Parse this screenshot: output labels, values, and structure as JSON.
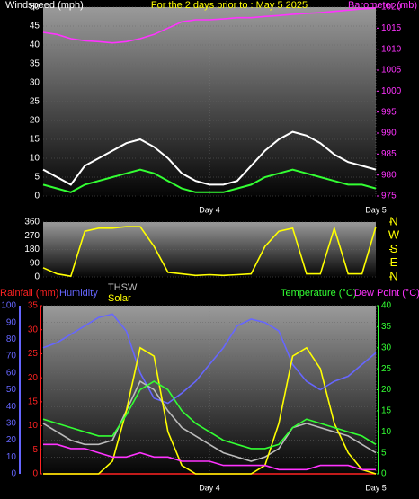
{
  "chart_data": [
    {
      "type": "line",
      "title": "For the 2 days prior to : May 5 2025",
      "ylabel": "Windspeed (mph)",
      "y2label": "Barometer (mb)",
      "ycolor": "#ffffff",
      "y2color": "#ff33ff",
      "titlecolor": "#ffff00",
      "x": [
        0,
        2,
        4,
        6,
        8,
        10,
        12,
        14,
        16,
        18,
        20,
        22,
        24,
        26,
        28,
        30,
        32,
        34,
        36,
        38,
        40,
        42,
        44,
        46,
        48
      ],
      "xlim": [
        0,
        48
      ],
      "xticks": [
        {
          "value": 24,
          "label": "Day 4"
        },
        {
          "value": 48,
          "label": "Day 5"
        }
      ],
      "ylim": [
        0,
        50
      ],
      "yticks": [
        0,
        5,
        10,
        15,
        20,
        25,
        30,
        35,
        40,
        45,
        50
      ],
      "y2lim": [
        975,
        1020
      ],
      "y2ticks": [
        975,
        980,
        985,
        990,
        995,
        1000,
        1005,
        1010,
        1015,
        1020
      ],
      "series": [
        {
          "color": "#ffffff",
          "values": [
            7,
            5,
            3,
            8,
            10,
            12,
            14,
            15,
            13,
            10,
            6,
            4,
            3,
            3,
            4,
            8,
            12,
            15,
            17,
            16,
            14,
            11,
            9,
            8,
            7
          ]
        },
        {
          "color": "#33ff33",
          "values": [
            3,
            2,
            1,
            3,
            4,
            5,
            6,
            7,
            6,
            4,
            2,
            1,
            1,
            1,
            2,
            3,
            5,
            6,
            7,
            6,
            5,
            4,
            3,
            3,
            2
          ]
        },
        {
          "color": "#ff33ff",
          "axis": "y2",
          "values": [
            1014,
            1013.5,
            1012.5,
            1012,
            1011.8,
            1011.5,
            1011.8,
            1012.5,
            1013.5,
            1015,
            1016.5,
            1017,
            1017,
            1017.2,
            1017.5,
            1017.5,
            1017.8,
            1018,
            1018.3,
            1018.5,
            1018.7,
            1019,
            1019.3,
            1019.6,
            1019.8
          ]
        }
      ]
    },
    {
      "type": "line",
      "ycolor": "#ffffff",
      "y2color": "#ffff00",
      "x": [
        0,
        2,
        4,
        6,
        8,
        10,
        12,
        14,
        16,
        18,
        20,
        22,
        24,
        26,
        28,
        30,
        32,
        34,
        36,
        38,
        40,
        42,
        44,
        46,
        48
      ],
      "xlim": [
        0,
        48
      ],
      "ylim": [
        0,
        360
      ],
      "yticks": [
        0,
        90,
        180,
        270,
        360
      ],
      "y2lim": [
        0,
        360
      ],
      "y2ticks": [
        {
          "value": 360,
          "label": "N"
        },
        {
          "value": 270,
          "label": "W"
        },
        {
          "value": 180,
          "label": "S"
        },
        {
          "value": 90,
          "label": "E"
        },
        {
          "value": 0,
          "label": "N"
        }
      ],
      "series": [
        {
          "color": "#ffff00",
          "values": [
            60,
            20,
            5,
            300,
            320,
            320,
            330,
            330,
            200,
            30,
            20,
            10,
            15,
            10,
            15,
            20,
            200,
            300,
            320,
            20,
            20,
            320,
            20,
            20,
            330
          ]
        }
      ]
    },
    {
      "type": "line",
      "ycolor": "#6666ff",
      "y2color": "#33ff33",
      "y3color": "#ff2222",
      "x": [
        0,
        2,
        4,
        6,
        8,
        10,
        12,
        14,
        16,
        18,
        20,
        22,
        24,
        26,
        28,
        30,
        32,
        34,
        36,
        38,
        40,
        42,
        44,
        46,
        48
      ],
      "xlim": [
        0,
        48
      ],
      "xticks": [
        {
          "value": 24,
          "label": "Day 4"
        },
        {
          "value": 48,
          "label": "Day 5"
        }
      ],
      "ylim": [
        0,
        100
      ],
      "yticks": [
        0,
        10,
        20,
        30,
        40,
        50,
        60,
        70,
        80,
        90,
        100
      ],
      "y2lim": [
        0,
        40
      ],
      "y2ticks": [
        0,
        5,
        10,
        15,
        20,
        25,
        30,
        35,
        40
      ],
      "y3lim": [
        0,
        35
      ],
      "y3ticks": [
        0,
        5,
        10,
        15,
        20,
        25,
        30,
        35
      ],
      "series": [
        {
          "name": "Rainfall (mm)",
          "color": "#ff2222",
          "axis": "y3",
          "values": [
            0,
            0,
            0,
            0,
            0,
            0,
            0,
            0,
            0,
            0,
            0,
            0,
            0,
            0,
            0,
            0,
            0,
            0,
            0,
            0,
            0,
            0,
            0,
            0,
            0
          ]
        },
        {
          "name": "Humidity",
          "color": "#6666ff",
          "values": [
            75,
            78,
            83,
            88,
            93,
            95,
            85,
            60,
            45,
            42,
            48,
            55,
            65,
            75,
            88,
            92,
            90,
            85,
            65,
            55,
            50,
            55,
            58,
            65,
            72
          ]
        },
        {
          "name": "THSW",
          "color": "#bbbbbb",
          "axis": "y2",
          "values": [
            12,
            10,
            8,
            7,
            7,
            8,
            15,
            22,
            20,
            15,
            11,
            9,
            7,
            5,
            4,
            3,
            4,
            6,
            11,
            12,
            11,
            10,
            9,
            7,
            5
          ]
        },
        {
          "name": "Solar",
          "color": "#ffff00",
          "axis": "y2",
          "values": [
            0,
            0,
            0,
            0,
            0,
            3,
            15,
            30,
            28,
            10,
            2,
            0,
            0,
            0,
            0,
            0,
            2,
            12,
            28,
            30,
            25,
            12,
            5,
            1,
            0
          ]
        },
        {
          "name": "Temperature (°C)",
          "color": "#33ff33",
          "axis": "y2",
          "values": [
            13,
            12,
            11,
            10,
            9,
            9,
            14,
            20,
            22,
            20,
            15,
            12,
            10,
            8,
            7,
            6,
            6,
            7,
            11,
            13,
            12,
            11,
            10,
            9,
            7
          ]
        },
        {
          "name": "Dew Point (°C)",
          "color": "#ff33ff",
          "axis": "y2",
          "values": [
            7,
            7,
            6,
            6,
            5,
            4,
            4,
            5,
            4,
            4,
            3,
            3,
            3,
            2,
            2,
            2,
            2,
            1,
            1,
            1,
            2,
            2,
            2,
            1,
            1
          ]
        }
      ]
    }
  ]
}
